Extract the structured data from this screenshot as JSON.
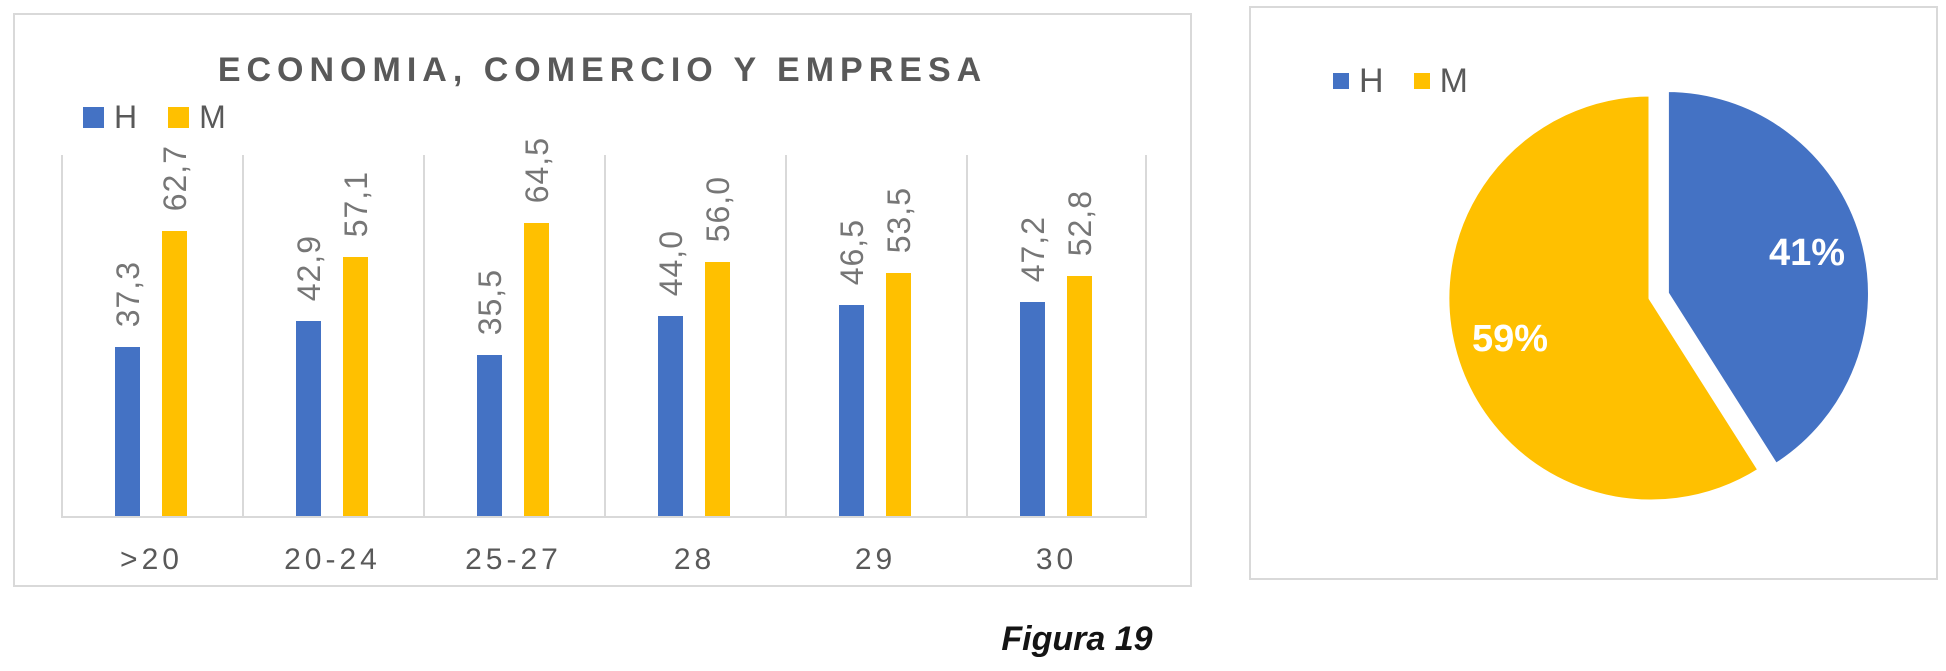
{
  "figure_caption": "Figura 19",
  "colors": {
    "series_h": "#4472C4",
    "series_m": "#FFC000",
    "grid": "#d9d9d9",
    "title_text": "#595959",
    "data_label_text": "#767676",
    "pie_label_text": "#ffffff"
  },
  "chart_data": [
    {
      "type": "bar",
      "title": "ECONOMIA, COMERCIO Y EMPRESA",
      "categories": [
        ">20",
        "20-24",
        "25-27",
        "28",
        "29",
        "30"
      ],
      "series": [
        {
          "name": "H",
          "color": "#4472C4",
          "values": [
            37.3,
            42.9,
            35.5,
            44.0,
            46.5,
            47.2
          ],
          "labels": [
            "37,3",
            "42,9",
            "35,5",
            "44,0",
            "46,5",
            "47,2"
          ]
        },
        {
          "name": "M",
          "color": "#FFC000",
          "values": [
            62.7,
            57.1,
            64.5,
            56.0,
            53.5,
            52.8
          ],
          "labels": [
            "62,7",
            "57,1",
            "64,5",
            "56,0",
            "53,5",
            "52,8"
          ]
        }
      ],
      "ylim": [
        0,
        80
      ],
      "grid": "vertical-category-separators",
      "legend_position": "top-left",
      "data_labels": "rotated-90-above-bars"
    },
    {
      "type": "pie",
      "series_labels": [
        "H",
        "M"
      ],
      "values": [
        41,
        59
      ],
      "labels": [
        "41%",
        "59%"
      ],
      "colors": [
        "#4472C4",
        "#FFC000"
      ],
      "start_angle_deg": 0,
      "direction": "clockwise",
      "exploded_slice": "H",
      "legend_position": "top-left"
    }
  ]
}
